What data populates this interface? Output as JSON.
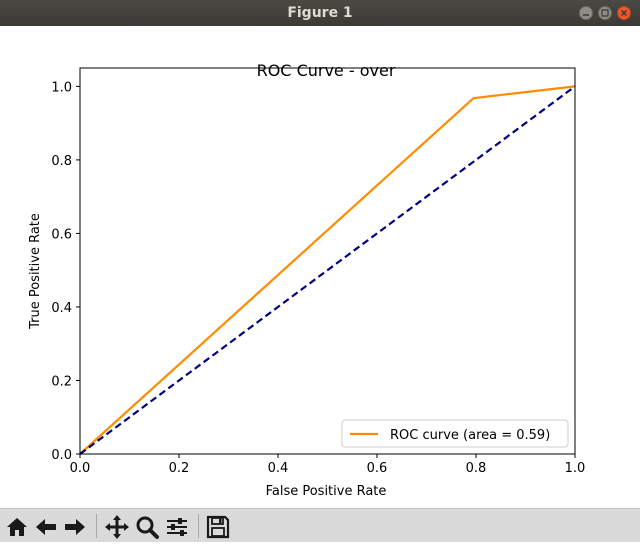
{
  "window": {
    "title": "Figure 1"
  },
  "toolbar": {
    "buttons": [
      {
        "name": "home-button",
        "icon": "home-icon"
      },
      {
        "name": "back-button",
        "icon": "arrow-left-icon"
      },
      {
        "name": "forward-button",
        "icon": "arrow-right-icon"
      },
      {
        "name": "pan-button",
        "icon": "move-icon"
      },
      {
        "name": "zoom-button",
        "icon": "magnifier-icon"
      },
      {
        "name": "configure-subplots-button",
        "icon": "sliders-icon"
      },
      {
        "name": "save-button",
        "icon": "floppy-disk-icon"
      }
    ]
  },
  "chart_data": {
    "type": "line",
    "title": "ROC Curve - over",
    "xlabel": "False Positive Rate",
    "ylabel": "True Positive Rate",
    "xlim": [
      0.0,
      1.0
    ],
    "ylim": [
      0.0,
      1.05
    ],
    "xticks": [
      "0.0",
      "0.2",
      "0.4",
      "0.6",
      "0.8",
      "1.0"
    ],
    "yticks": [
      "0.0",
      "0.2",
      "0.4",
      "0.6",
      "0.8",
      "1.0"
    ],
    "grid": false,
    "legend_position": "lower-right",
    "series": [
      {
        "name": "ROC curve (area = 0.59)",
        "color": "#ff8c00",
        "style": "solid",
        "x": [
          0.0,
          0.795,
          1.0
        ],
        "y": [
          0.0,
          0.968,
          1.0
        ]
      },
      {
        "color": "#000080",
        "style": "dashed",
        "x": [
          0.0,
          1.0
        ],
        "y": [
          0.0,
          1.0
        ]
      }
    ]
  }
}
